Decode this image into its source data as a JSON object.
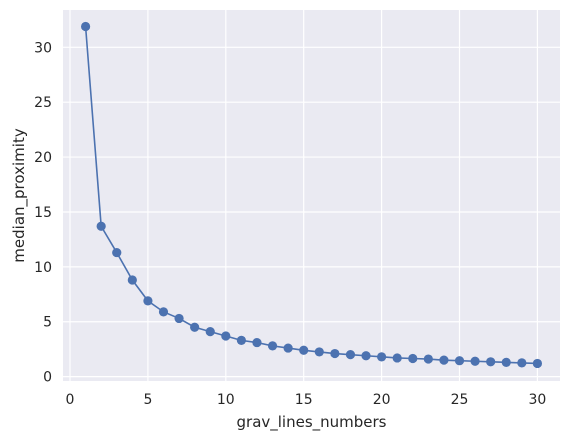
{
  "chart_data": {
    "type": "line",
    "title": "",
    "xlabel": "grav_lines_numbers",
    "ylabel": "median_proximity",
    "xlim": [
      -0.45,
      31.45
    ],
    "ylim": [
      -0.4,
      33.4
    ],
    "xticks": [
      0,
      5,
      10,
      15,
      20,
      25,
      30
    ],
    "yticks": [
      0,
      5,
      10,
      15,
      20,
      25,
      30
    ],
    "grid": true,
    "marker": "circle",
    "colors": {
      "background": "#eaeaf2",
      "grid": "#ffffff",
      "series": "#4c72b0"
    },
    "series": [
      {
        "x": [
          1,
          2,
          3,
          4,
          5,
          6,
          7,
          8,
          9,
          10,
          11,
          12,
          13,
          14,
          15,
          16,
          17,
          18,
          19,
          20,
          21,
          22,
          23,
          24,
          25,
          26,
          27,
          28,
          29,
          30
        ],
        "values": [
          31.9,
          13.7,
          11.3,
          8.8,
          6.9,
          5.9,
          5.3,
          4.5,
          4.1,
          3.7,
          3.3,
          3.1,
          2.8,
          2.6,
          2.4,
          2.25,
          2.1,
          2.0,
          1.9,
          1.8,
          1.7,
          1.65,
          1.6,
          1.5,
          1.45,
          1.4,
          1.35,
          1.3,
          1.25,
          1.2
        ]
      }
    ]
  }
}
